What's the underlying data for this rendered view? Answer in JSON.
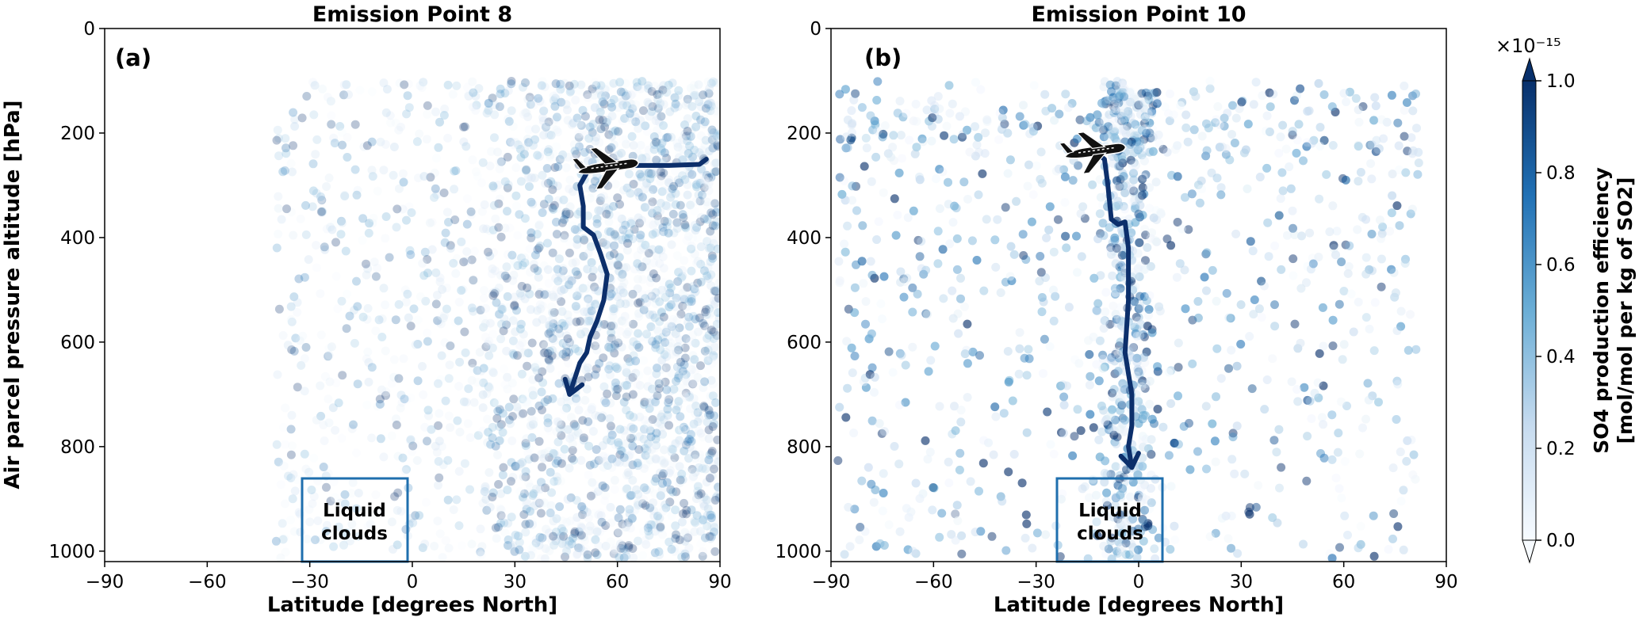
{
  "figure": {
    "shared_xlabel": "Latitude [degrees North]",
    "shared_ylabel": "Air parcel pressure altitude [hPa]"
  },
  "chart_data": [
    {
      "type": "scatter",
      "title": "Emission Point 8",
      "panel_label": "(a)",
      "xlabel": "Latitude [degrees North]",
      "ylabel": "Air parcel pressure altitude [hPa]",
      "xlim": [
        -90,
        90
      ],
      "ylim": [
        1020,
        0
      ],
      "y_inverted": true,
      "xticks": [
        -90,
        -60,
        -30,
        0,
        30,
        60,
        90
      ],
      "xtick_labels": [
        "−90",
        "−60",
        "−30",
        "0",
        "30",
        "60",
        "90"
      ],
      "yticks": [
        0,
        200,
        400,
        600,
        800,
        1000
      ],
      "ytick_labels": [
        "0",
        "200",
        "400",
        "600",
        "800",
        "1000"
      ],
      "grid": false,
      "point_cloud": {
        "description_values": "air parcels colored by SO4 production efficiency",
        "lat_range": [
          -40,
          90
        ],
        "pressure_range": [
          100,
          1015
        ],
        "dense_lat_range": [
          20,
          90
        ]
      },
      "trajectory": {
        "lat": [
          86,
          84,
          75,
          62,
          52,
          49,
          50,
          50,
          53,
          55,
          57,
          56,
          54,
          52,
          51,
          49,
          48,
          47,
          46
        ],
        "pressure": [
          250,
          260,
          262,
          262,
          265,
          300,
          340,
          380,
          395,
          430,
          470,
          520,
          560,
          590,
          620,
          640,
          660,
          680,
          700
        ]
      },
      "aircraft_marker": {
        "lat": 57,
        "pressure": 265,
        "icon": "airplane-icon"
      },
      "annotation": {
        "text": "Liquid clouds",
        "box_lat": [
          -30,
          0
        ],
        "box_pressure": [
          800,
          1020
        ],
        "color": "#1f6fae"
      }
    },
    {
      "type": "scatter",
      "title": "Emission Point 10",
      "panel_label": "(b)",
      "xlabel": "Latitude [degrees North]",
      "ylabel": "",
      "xlim": [
        -90,
        90
      ],
      "ylim": [
        1020,
        0
      ],
      "y_inverted": true,
      "xticks": [
        -90,
        -60,
        -30,
        0,
        30,
        60,
        90
      ],
      "xtick_labels": [
        "−90",
        "−60",
        "−30",
        "0",
        "30",
        "60",
        "90"
      ],
      "yticks": [
        0,
        200,
        400,
        600,
        800,
        1000
      ],
      "ytick_labels": [
        "0",
        "200",
        "400",
        "600",
        "800",
        "1000"
      ],
      "grid": false,
      "point_cloud": {
        "description_values": "air parcels colored by SO4 production efficiency",
        "lat_range": [
          -88,
          82
        ],
        "pressure_range": [
          100,
          1015
        ],
        "dense_lat_range": [
          -20,
          15
        ]
      },
      "trajectory": {
        "lat": [
          -13,
          -10,
          -9,
          -8,
          -6,
          -4,
          -3,
          -3,
          -4,
          -3,
          -2,
          -2,
          -3,
          -2
        ],
        "pressure": [
          235,
          250,
          300,
          365,
          375,
          370,
          420,
          520,
          620,
          660,
          700,
          760,
          800,
          840
        ]
      },
      "aircraft_marker": {
        "lat": -13,
        "pressure": 235,
        "icon": "airplane-icon"
      },
      "annotation": {
        "text": "Liquid clouds",
        "box_lat": [
          -30,
          0
        ],
        "box_pressure": [
          800,
          1020
        ],
        "color": "#1f6fae"
      }
    }
  ],
  "colorbar": {
    "label_line1": "SO4 production efficiency",
    "label_line2": "[mol/mol per kg of SO2]",
    "scale_text": "×10⁻¹⁵",
    "range": [
      0.0,
      1.0
    ],
    "ticks": [
      0.0,
      0.2,
      0.4,
      0.6,
      0.8,
      1.0
    ],
    "tick_labels": [
      "0.0",
      "0.2",
      "0.4",
      "0.6",
      "0.8",
      "1.0"
    ],
    "extend": "both",
    "color_low": "#f7fbff",
    "color_mid": "#6baed6",
    "color_high": "#08306b"
  },
  "colors": {
    "trajectory": "#0c2f6b",
    "annotation": "#1f6fae"
  }
}
